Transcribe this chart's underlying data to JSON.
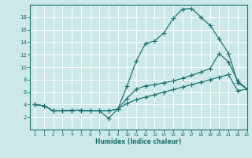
{
  "xlabel": "Humidex (Indice chaleur)",
  "bg_color": "#cce8e8",
  "grid_color": "#ffffff",
  "line_color": "#1a7070",
  "xlim": [
    -0.5,
    23
  ],
  "ylim": [
    0,
    20
  ],
  "xticks": [
    0,
    1,
    2,
    3,
    4,
    5,
    6,
    7,
    8,
    9,
    10,
    11,
    12,
    13,
    14,
    15,
    16,
    17,
    18,
    19,
    20,
    21,
    22,
    23
  ],
  "yticks": [
    2,
    4,
    6,
    8,
    10,
    12,
    14,
    16,
    18
  ],
  "line1_x": [
    0,
    1,
    2,
    3,
    4,
    5,
    6,
    7,
    8,
    9,
    10,
    11,
    12,
    13,
    14,
    15,
    16,
    17,
    18,
    19,
    20,
    21,
    22,
    23
  ],
  "line1_y": [
    4.0,
    3.8,
    3.0,
    3.0,
    3.1,
    3.1,
    3.0,
    3.0,
    3.0,
    3.3,
    7.0,
    11.0,
    13.8,
    14.2,
    15.5,
    17.8,
    19.3,
    19.4,
    18.0,
    16.7,
    14.5,
    12.2,
    7.5,
    6.5
  ],
  "line2_x": [
    0,
    1,
    2,
    3,
    4,
    5,
    6,
    7,
    8,
    9,
    10,
    11,
    12,
    13,
    14,
    15,
    16,
    17,
    18,
    19,
    20,
    21,
    22,
    23
  ],
  "line2_y": [
    4.0,
    3.8,
    3.0,
    3.0,
    3.1,
    3.1,
    3.0,
    3.0,
    1.8,
    3.3,
    5.0,
    6.5,
    7.0,
    7.2,
    7.5,
    7.8,
    8.2,
    8.7,
    9.2,
    9.8,
    12.2,
    10.8,
    7.8,
    6.5
  ],
  "line3_x": [
    0,
    1,
    2,
    3,
    4,
    5,
    6,
    7,
    8,
    9,
    10,
    11,
    12,
    13,
    14,
    15,
    16,
    17,
    18,
    19,
    20,
    21,
    22,
    23
  ],
  "line3_y": [
    4.0,
    3.8,
    3.0,
    3.0,
    3.1,
    3.1,
    3.0,
    3.0,
    3.0,
    3.3,
    4.2,
    4.8,
    5.2,
    5.6,
    6.0,
    6.4,
    6.8,
    7.2,
    7.6,
    8.0,
    8.4,
    8.8,
    6.2,
    6.5
  ]
}
